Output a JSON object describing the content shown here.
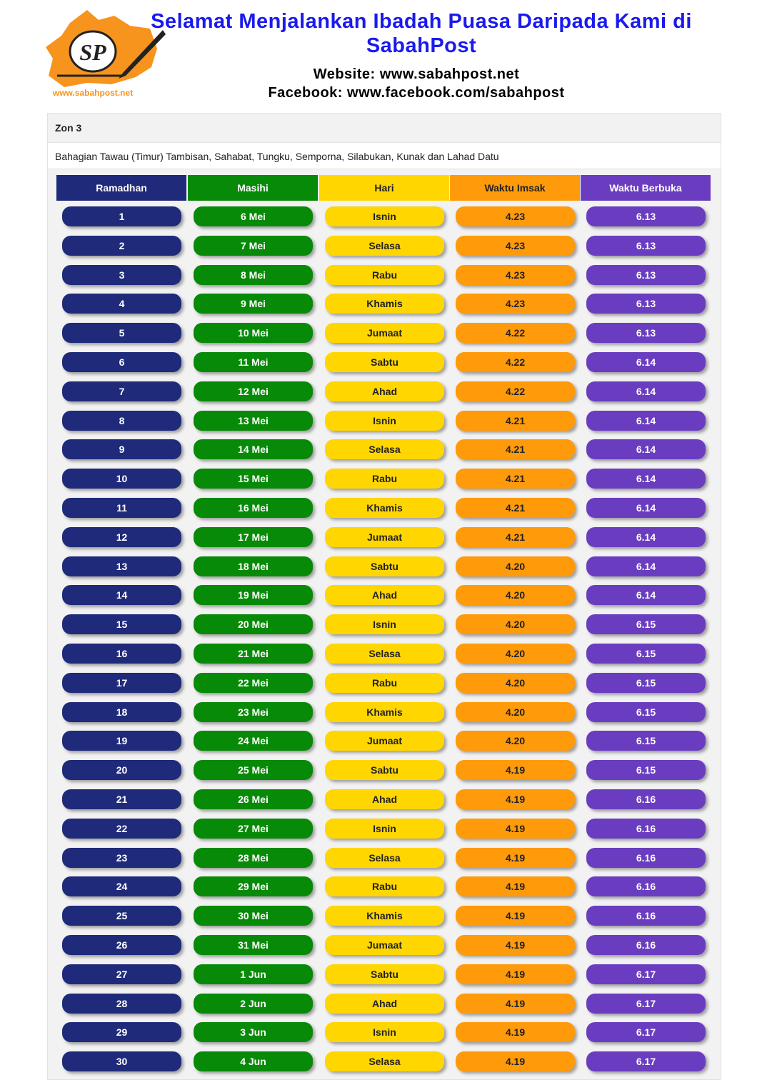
{
  "header": {
    "logo_mark": "SP",
    "logo_url": "www.sabahpost.net",
    "title_line1": "Selamat Menjalankan Ibadah Puasa Daripada Kami di",
    "title_line2": "SabahPost",
    "website": "Website: www.sabahpost.net",
    "facebook": "Facebook: www.facebook.com/sabahpost"
  },
  "table": {
    "zone": "Zon 3",
    "region": "Bahagian Tawau (Timur) Tambisan, Sahabat, Tungku, Semporna, Silabukan, Kunak dan Lahad Datu",
    "columns": [
      "Ramadhan",
      "Masihi",
      "Hari",
      "Waktu Imsak",
      "Waktu Berbuka"
    ],
    "rows": [
      [
        1,
        "6 Mei",
        "Isnin",
        "4.23",
        "6.13"
      ],
      [
        2,
        "7 Mei",
        "Selasa",
        "4.23",
        "6.13"
      ],
      [
        3,
        "8 Mei",
        "Rabu",
        "4.23",
        "6.13"
      ],
      [
        4,
        "9 Mei",
        "Khamis",
        "4.23",
        "6.13"
      ],
      [
        5,
        "10 Mei",
        "Jumaat",
        "4.22",
        "6.13"
      ],
      [
        6,
        "11 Mei",
        "Sabtu",
        "4.22",
        "6.14"
      ],
      [
        7,
        "12 Mei",
        "Ahad",
        "4.22",
        "6.14"
      ],
      [
        8,
        "13 Mei",
        "Isnin",
        "4.21",
        "6.14"
      ],
      [
        9,
        "14 Mei",
        "Selasa",
        "4.21",
        "6.14"
      ],
      [
        10,
        "15 Mei",
        "Rabu",
        "4.21",
        "6.14"
      ],
      [
        11,
        "16 Mei",
        "Khamis",
        "4.21",
        "6.14"
      ],
      [
        12,
        "17 Mei",
        "Jumaat",
        "4.21",
        "6.14"
      ],
      [
        13,
        "18 Mei",
        "Sabtu",
        "4.20",
        "6.14"
      ],
      [
        14,
        "19 Mei",
        "Ahad",
        "4.20",
        "6.14"
      ],
      [
        15,
        "20 Mei",
        "Isnin",
        "4.20",
        "6.15"
      ],
      [
        16,
        "21 Mei",
        "Selasa",
        "4.20",
        "6.15"
      ],
      [
        17,
        "22 Mei",
        "Rabu",
        "4.20",
        "6.15"
      ],
      [
        18,
        "23 Mei",
        "Khamis",
        "4.20",
        "6.15"
      ],
      [
        19,
        "24 Mei",
        "Jumaat",
        "4.20",
        "6.15"
      ],
      [
        20,
        "25 Mei",
        "Sabtu",
        "4.19",
        "6.15"
      ],
      [
        21,
        "26 Mei",
        "Ahad",
        "4.19",
        "6.16"
      ],
      [
        22,
        "27 Mei",
        "Isnin",
        "4.19",
        "6.16"
      ],
      [
        23,
        "28 Mei",
        "Selasa",
        "4.19",
        "6.16"
      ],
      [
        24,
        "29 Mei",
        "Rabu",
        "4.19",
        "6.16"
      ],
      [
        25,
        "30 Mei",
        "Khamis",
        "4.19",
        "6.16"
      ],
      [
        26,
        "31 Mei",
        "Jumaat",
        "4.19",
        "6.16"
      ],
      [
        27,
        "1 Jun",
        "Sabtu",
        "4.19",
        "6.17"
      ],
      [
        28,
        "2 Jun",
        "Ahad",
        "4.19",
        "6.17"
      ],
      [
        29,
        "3 Jun",
        "Isnin",
        "4.19",
        "6.17"
      ],
      [
        30,
        "4 Jun",
        "Selasa",
        "4.19",
        "6.17"
      ]
    ]
  }
}
